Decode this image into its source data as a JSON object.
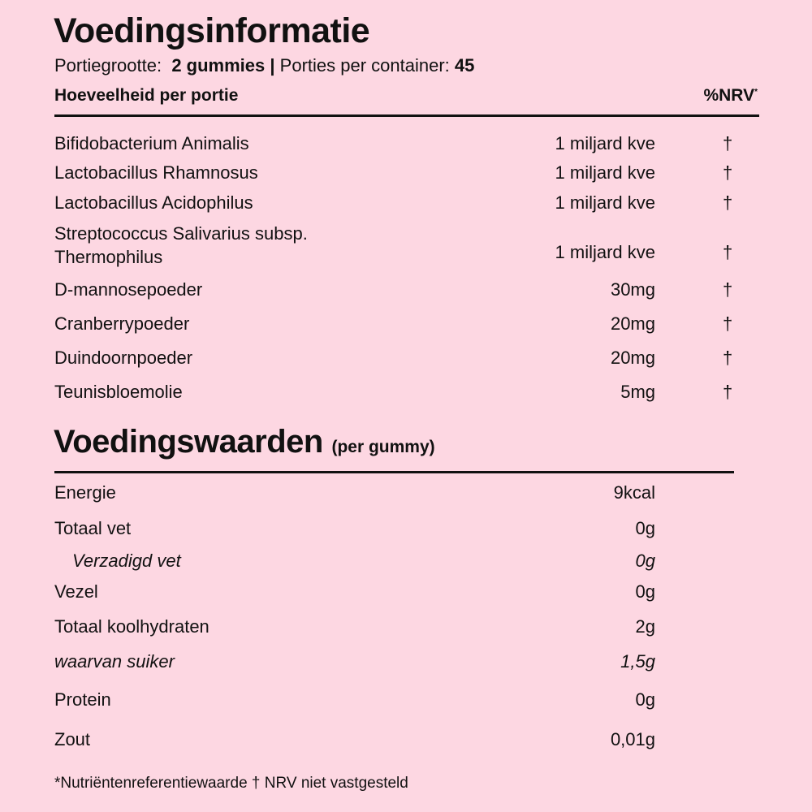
{
  "title": "Voedingsinformatie",
  "serving": {
    "label": "Portiegrootte:",
    "size": "2 gummies",
    "separator": "|",
    "containers_label": "Porties per container:",
    "containers": "45"
  },
  "header": {
    "amount": "Hoeveelheid per portie",
    "nrv": "%NRV",
    "nrv_mark": "*"
  },
  "ingredients": [
    {
      "name": "Bifidobacterium Animalis",
      "amount": "1 miljard kve",
      "nrv": "†"
    },
    {
      "name": "Lactobacillus Rhamnosus",
      "amount": "1 miljard kve",
      "nrv": "†"
    },
    {
      "name": "Lactobacillus Acidophilus",
      "amount": "1 miljard kve",
      "nrv": "†"
    },
    {
      "name": "Streptococcus Salivarius subsp.",
      "name2": "Thermophilus",
      "amount": "1 miljard kve",
      "nrv": "†"
    },
    {
      "name": "D-mannosepoeder",
      "amount": "30mg",
      "nrv": "†"
    },
    {
      "name": "Cranberrypoeder",
      "amount": "20mg",
      "nrv": "†"
    },
    {
      "name": "Duindoornpoeder",
      "amount": "20mg",
      "nrv": "†"
    },
    {
      "name": "Teunisbloemolie",
      "amount": "5mg",
      "nrv": "†"
    }
  ],
  "nutrition": {
    "title": "Voedingswaarden",
    "subtitle": "(per gummy)",
    "rows": [
      {
        "name": "Energie",
        "value": "9kcal"
      },
      {
        "name": "Totaal vet",
        "value": "0g"
      },
      {
        "name": "Verzadigd vet",
        "value": "0g"
      },
      {
        "name": "Vezel",
        "value": "0g"
      },
      {
        "name": "Totaal koolhydraten",
        "value": "2g"
      },
      {
        "name": "waarvan suiker",
        "value": "1,5g"
      },
      {
        "name": "Protein",
        "value": "0g"
      },
      {
        "name": "Zout",
        "value": "0,01g"
      }
    ]
  },
  "footnote": "*Nutriëntenreferentiewaarde † NRV niet vastgesteld"
}
